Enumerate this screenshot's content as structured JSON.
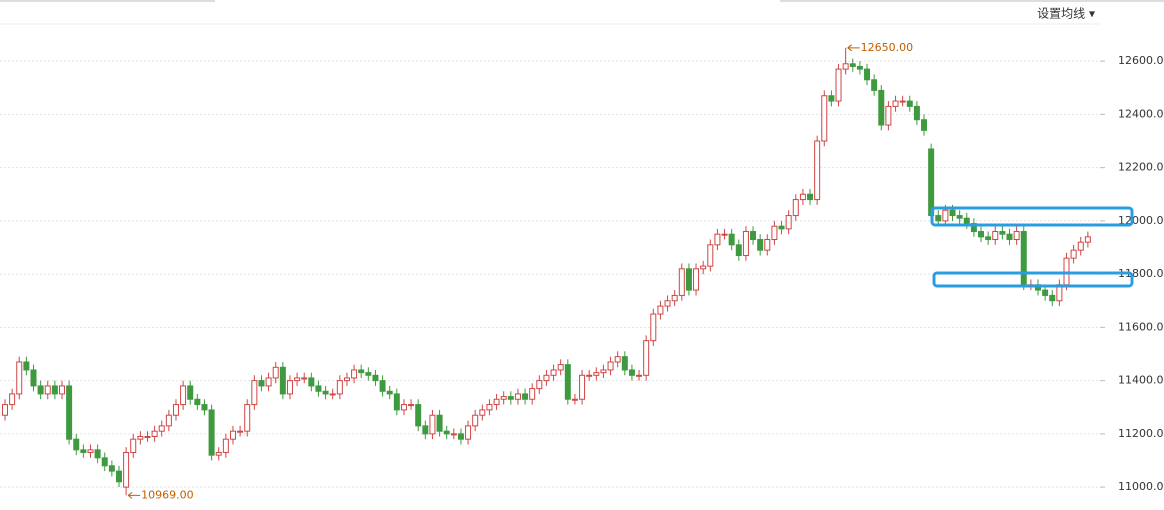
{
  "controls": {
    "ma_setting": "设置均线 ▾"
  },
  "chart_data": {
    "type": "candlestick",
    "up_color": "#d04545",
    "down_color": "#3f9a3f",
    "ylim": [
      10914,
      12747
    ],
    "yticks": [
      {
        "value": 11000,
        "label": "11000.0"
      },
      {
        "value": 11200,
        "label": "11200.0"
      },
      {
        "value": 11400,
        "label": "11400.0"
      },
      {
        "value": 11600,
        "label": "11600.0"
      },
      {
        "value": 11800,
        "label": "11800.0"
      },
      {
        "value": 12000,
        "label": "12000.0"
      },
      {
        "value": 12200,
        "label": "12200.0"
      },
      {
        "value": 12400,
        "label": "12400.0"
      },
      {
        "value": 12600,
        "label": "12600.0"
      }
    ],
    "grid": true,
    "annotations": [
      {
        "value": 12650,
        "label": "12650.00"
      },
      {
        "value": 10969,
        "label": "10969.00"
      }
    ],
    "open": [
      11270,
      11310,
      11350,
      11470,
      11440,
      11380,
      11350,
      11380,
      11350,
      11380,
      11180,
      11140,
      11130,
      11140,
      11110,
      11080,
      11060,
      11000,
      11130,
      11180,
      11190,
      11190,
      11210,
      11230,
      11270,
      11310,
      11380,
      11330,
      11310,
      11290,
      11120,
      11130,
      11180,
      11210,
      11210,
      11310,
      11400,
      11380,
      11410,
      11450,
      11350,
      11400,
      11410,
      11410,
      11380,
      11360,
      11350,
      11350,
      11400,
      11410,
      11440,
      11430,
      11420,
      11400,
      11360,
      11350,
      11290,
      11310,
      11310,
      11230,
      11200,
      11270,
      11210,
      11200,
      11200,
      11180,
      11230,
      11270,
      11290,
      11310,
      11330,
      11340,
      11330,
      11350,
      11330,
      11370,
      11400,
      11420,
      11440,
      11460,
      11330,
      11330,
      11420,
      11420,
      11430,
      11440,
      11470,
      11490,
      11440,
      11420,
      11420,
      11550,
      11650,
      11680,
      11700,
      11720,
      11820,
      11740,
      11820,
      11830,
      11910,
      11950,
      11950,
      11910,
      11870,
      11960,
      11930,
      11890,
      11930,
      11980,
      11970,
      12020,
      12080,
      12100,
      12080,
      12300,
      12470,
      12450,
      12570,
      12590,
      12580,
      12570,
      12530,
      12490,
      12360,
      12430,
      12450,
      12450,
      12430,
      12380,
      12270,
      12020,
      12000,
      12040,
      12020,
      12010,
      11990,
      11960,
      11940,
      11930,
      11960,
      11950,
      11930,
      11960,
      11760,
      11760,
      11740,
      11720,
      11700,
      11760,
      11860,
      11890,
      11920
    ],
    "high": [
      11330,
      11370,
      11490,
      11490,
      11460,
      11400,
      11400,
      11400,
      11400,
      11400,
      11200,
      11160,
      11160,
      11160,
      11130,
      11100,
      11080,
      11150,
      11200,
      11210,
      11210,
      11230,
      11250,
      11290,
      11330,
      11400,
      11400,
      11350,
      11330,
      11310,
      11150,
      11200,
      11230,
      11230,
      11330,
      11420,
      11420,
      11430,
      11470,
      11470,
      11420,
      11430,
      11430,
      11430,
      11400,
      11380,
      11370,
      11420,
      11430,
      11460,
      11460,
      11450,
      11440,
      11420,
      11380,
      11370,
      11330,
      11330,
      11330,
      11250,
      11290,
      11290,
      11230,
      11220,
      11220,
      11250,
      11290,
      11310,
      11330,
      11350,
      11360,
      11360,
      11370,
      11370,
      11390,
      11420,
      11440,
      11460,
      11480,
      11480,
      11350,
      11440,
      11440,
      11450,
      11460,
      11490,
      11510,
      11510,
      11460,
      11440,
      11570,
      11670,
      11700,
      11720,
      11740,
      11840,
      11840,
      11840,
      11850,
      11930,
      11970,
      11970,
      11970,
      11930,
      11980,
      11980,
      11950,
      11950,
      12000,
      12000,
      12040,
      12100,
      12120,
      12120,
      12320,
      12490,
      12490,
      12590,
      12650,
      12610,
      12600,
      12590,
      12550,
      12510,
      12450,
      12470,
      12470,
      12470,
      12450,
      12400,
      12290,
      12040,
      12060,
      12060,
      12040,
      12030,
      12010,
      11980,
      11960,
      11980,
      11980,
      11970,
      11980,
      11980,
      11780,
      11780,
      11760,
      11740,
      11780,
      11880,
      11910,
      11940,
      11960
    ],
    "low": [
      11250,
      11290,
      11330,
      11420,
      11360,
      11330,
      11330,
      11330,
      11330,
      11160,
      11120,
      11110,
      11110,
      11090,
      11060,
      11040,
      11000,
      10969,
      11110,
      11160,
      11170,
      11170,
      11190,
      11210,
      11250,
      11290,
      11310,
      11290,
      11270,
      11100,
      11100,
      11110,
      11160,
      11190,
      11190,
      11290,
      11360,
      11360,
      11390,
      11330,
      11330,
      11380,
      11390,
      11360,
      11340,
      11330,
      11330,
      11330,
      11380,
      11390,
      11410,
      11400,
      11380,
      11340,
      11330,
      11270,
      11270,
      11290,
      11210,
      11180,
      11180,
      11190,
      11180,
      11180,
      11160,
      11160,
      11210,
      11250,
      11270,
      11290,
      11310,
      11310,
      11310,
      11310,
      11310,
      11350,
      11380,
      11400,
      11420,
      11310,
      11310,
      11310,
      11400,
      11400,
      11410,
      11420,
      11450,
      11420,
      11400,
      11400,
      11400,
      11530,
      11630,
      11660,
      11680,
      11700,
      11720,
      11720,
      11800,
      11810,
      11890,
      11930,
      11890,
      11850,
      11850,
      11910,
      11870,
      11870,
      11910,
      11950,
      11950,
      12000,
      12060,
      12060,
      12060,
      12280,
      12430,
      12430,
      12550,
      12560,
      12550,
      12510,
      12470,
      12340,
      12340,
      12410,
      12430,
      12410,
      12360,
      12320,
      12000,
      11980,
      11980,
      12000,
      11990,
      11970,
      11940,
      11920,
      11910,
      11910,
      11930,
      11910,
      11910,
      11740,
      11740,
      11720,
      11700,
      11680,
      11680,
      11740,
      11840,
      11870,
      11900
    ],
    "close": [
      11310,
      11350,
      11470,
      11440,
      11380,
      11350,
      11380,
      11350,
      11380,
      11180,
      11140,
      11130,
      11140,
      11110,
      11080,
      11060,
      11020,
      11130,
      11180,
      11190,
      11190,
      11210,
      11230,
      11270,
      11310,
      11380,
      11330,
      11310,
      11290,
      11120,
      11130,
      11180,
      11210,
      11210,
      11310,
      11400,
      11380,
      11410,
      11450,
      11350,
      11400,
      11410,
      11410,
      11380,
      11360,
      11350,
      11350,
      11400,
      11410,
      11440,
      11430,
      11420,
      11400,
      11360,
      11350,
      11290,
      11310,
      11310,
      11230,
      11200,
      11270,
      11210,
      11200,
      11200,
      11180,
      11230,
      11270,
      11290,
      11310,
      11330,
      11340,
      11330,
      11350,
      11330,
      11370,
      11400,
      11420,
      11440,
      11460,
      11330,
      11330,
      11420,
      11420,
      11430,
      11440,
      11470,
      11490,
      11440,
      11420,
      11420,
      11550,
      11650,
      11680,
      11700,
      11720,
      11820,
      11740,
      11820,
      11830,
      11910,
      11950,
      11950,
      11910,
      11870,
      11960,
      11930,
      11890,
      11930,
      11980,
      11970,
      12020,
      12080,
      12100,
      12080,
      12300,
      12470,
      12450,
      12570,
      12590,
      12580,
      12570,
      12530,
      12490,
      12360,
      12430,
      12450,
      12450,
      12430,
      12380,
      12340,
      12020,
      12000,
      12040,
      12020,
      12010,
      11990,
      11960,
      11940,
      11930,
      11960,
      11950,
      11930,
      11960,
      11760,
      11760,
      11740,
      11720,
      11700,
      11760,
      11860,
      11890,
      11920,
      11940
    ]
  }
}
